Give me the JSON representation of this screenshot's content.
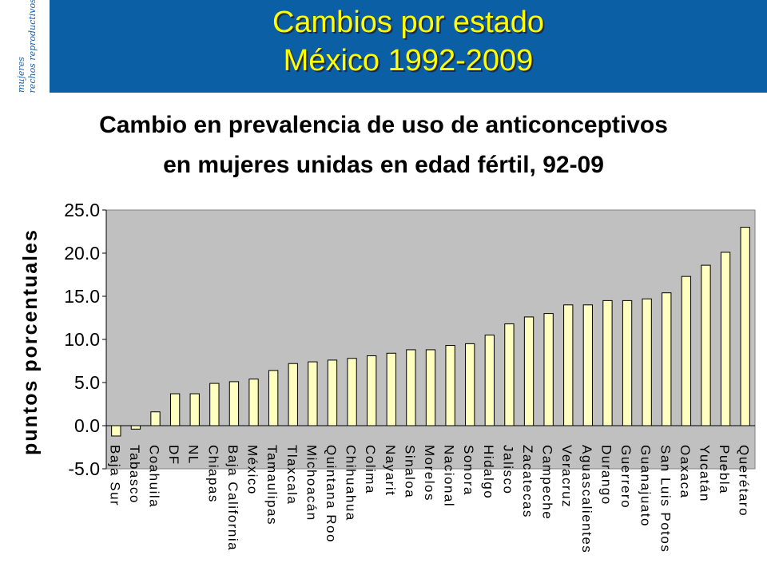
{
  "slide": {
    "title_line1": "Cambios por estado",
    "title_line2": "México 1992-2009",
    "logo_line1": "mujeres",
    "logo_line2": "derechos reproductivos"
  },
  "colors": {
    "header_bg": "#0b5fa5",
    "title_text": "#ffff00",
    "plot_bg": "#c0c0c0",
    "bar_fill": "#ffffc0"
  },
  "chart_data": {
    "type": "bar",
    "title_line1": "Cambio en prevalencia de uso de anticonceptivos",
    "title_line2": "en mujeres unidas en edad fértil, 92-09",
    "ylabel": "puntos porcentuales",
    "ylim": [
      -5.0,
      25.0
    ],
    "yticks": [
      "25.0",
      "20.0",
      "15.0",
      "10.0",
      "5.0",
      "0.0",
      "-5.0"
    ],
    "ytick_values": [
      25,
      20,
      15,
      10,
      5,
      0,
      -5
    ],
    "grid": false,
    "categories": [
      "Baja Sur",
      "Tabasco",
      "Coahuila",
      "DF",
      "NL",
      "Chiapas",
      "Baja California",
      "México",
      "Tamaulipas",
      "Tlaxcala",
      "Michoacán",
      "Quintana Roo",
      "Chihuahua",
      "Colima",
      "Nayarit",
      "Sinaloa",
      "Morelos",
      "Nacional",
      "Sonora",
      "Hidalgo",
      "Jalisco",
      "Zacatecas",
      "Campeche",
      "Veracruz",
      "Aguascalientes",
      "Durango",
      "Guerrero",
      "Guanajuato",
      "San Luis Potos",
      "Oaxaca",
      "Yucatán",
      "Puebla",
      "Querétaro"
    ],
    "values": [
      -1.2,
      -0.4,
      1.6,
      3.7,
      3.7,
      4.9,
      5.1,
      5.4,
      6.4,
      7.2,
      7.4,
      7.6,
      7.8,
      8.1,
      8.4,
      8.8,
      8.8,
      9.3,
      9.5,
      10.5,
      11.8,
      12.6,
      13.0,
      14.0,
      14.0,
      14.5,
      14.5,
      14.7,
      15.4,
      17.3,
      18.6,
      20.1,
      23.0
    ]
  }
}
